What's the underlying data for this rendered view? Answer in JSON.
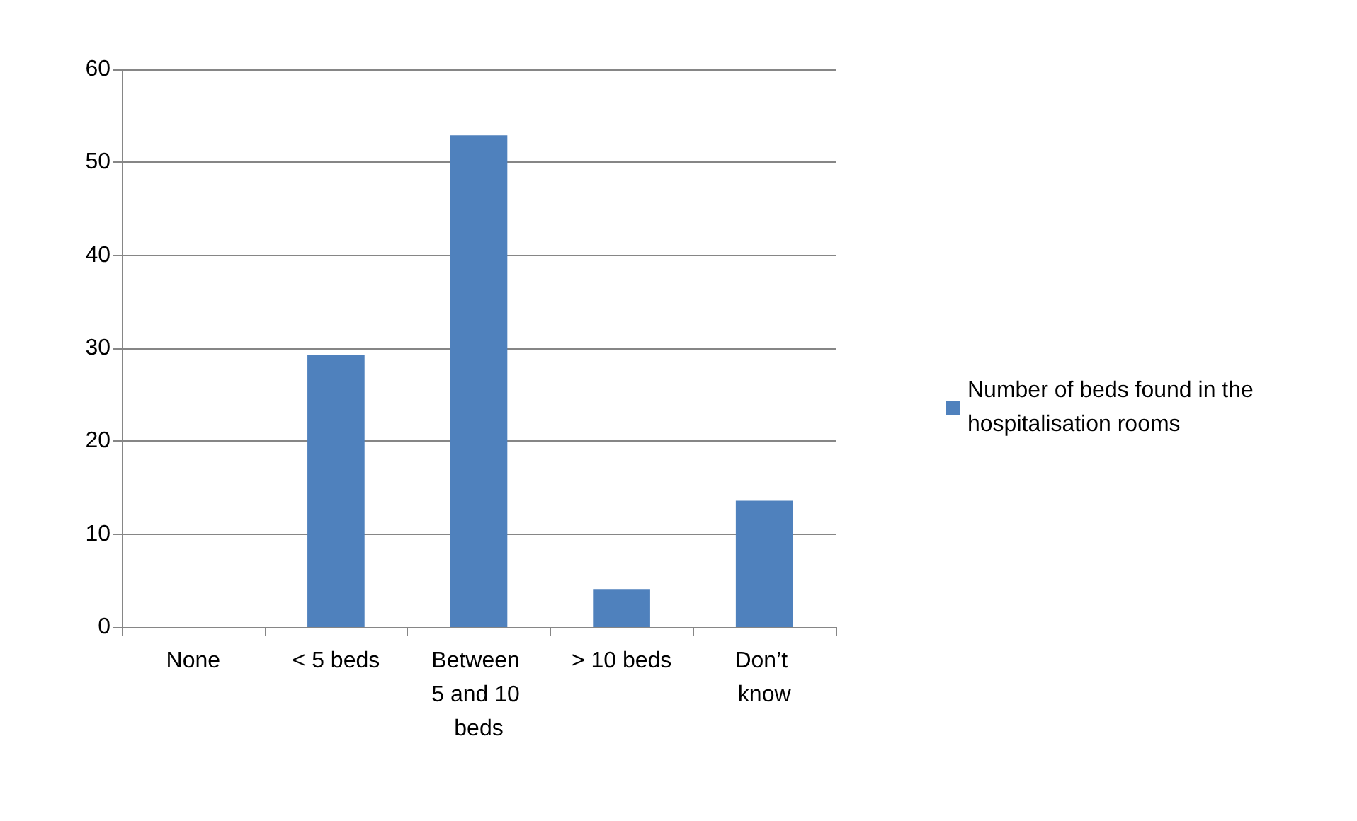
{
  "chart_data": {
    "type": "bar",
    "categories": [
      "None",
      "< 5 beds",
      "Between 5 and 10 beds",
      "> 10 beds",
      "Don’t know"
    ],
    "series": [
      {
        "name": "Number of beds found in the hospitalisation rooms",
        "color": "#4f81bd",
        "values": [
          0,
          29.3,
          52.9,
          4.1,
          13.6
        ]
      }
    ],
    "ylim": [
      0,
      60
    ],
    "yticks": [
      0,
      10,
      20,
      30,
      40,
      50,
      60
    ],
    "grid": "y",
    "legend": "right"
  }
}
